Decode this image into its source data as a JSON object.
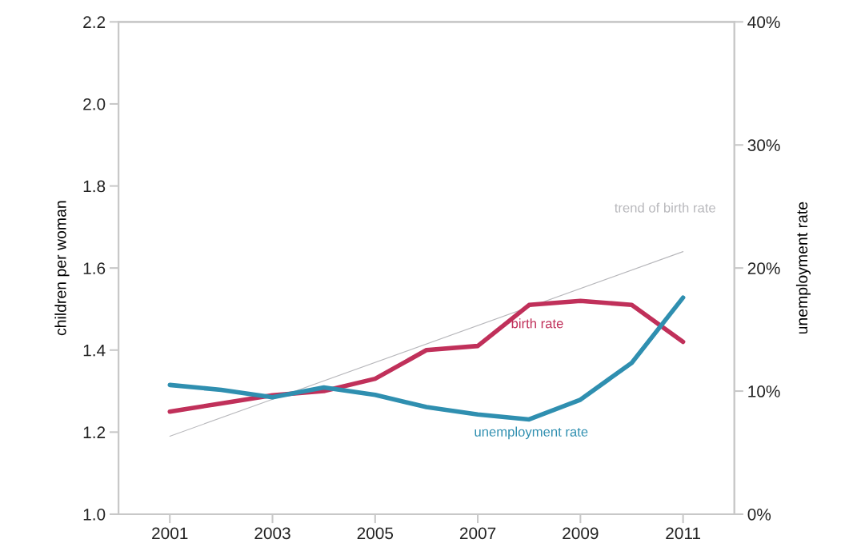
{
  "chart_data": {
    "type": "line",
    "ylabel": "children per woman",
    "y2label": "unemployment rate",
    "x": [
      2001,
      2002,
      2003,
      2004,
      2005,
      2006,
      2007,
      2008,
      2009,
      2010,
      2011
    ],
    "series": [
      {
        "name": "trend of birth rate",
        "color": "#b8b8bc",
        "x": [
          2001,
          2011
        ],
        "values": [
          1.19,
          1.64
        ]
      },
      {
        "name": "birth rate",
        "color": "#c0305a",
        "values": [
          1.25,
          1.27,
          1.29,
          1.3,
          1.33,
          1.4,
          1.41,
          1.51,
          1.52,
          1.51,
          1.42
        ]
      },
      {
        "name": "unemployment rate",
        "color": "#2f8fb0",
        "axis": "y2",
        "values": [
          10.5,
          10.1,
          9.5,
          10.3,
          9.7,
          8.7,
          8.1,
          7.7,
          9.3,
          12.3,
          17.6
        ]
      }
    ],
    "xlim": [
      2000,
      2012
    ],
    "xticks": [
      2001,
      2003,
      2005,
      2007,
      2009,
      2011
    ],
    "ylim": [
      1.0,
      2.2
    ],
    "yticks": [
      {
        "value": 1.0,
        "label": "1.0"
      },
      {
        "value": 1.2,
        "label": "1.2"
      },
      {
        "value": 1.4,
        "label": "1.4"
      },
      {
        "value": 1.6,
        "label": "1.6"
      },
      {
        "value": 1.8,
        "label": "1.8"
      },
      {
        "value": 2.0,
        "label": "2.0"
      },
      {
        "value": 2.2,
        "label": "2.2"
      }
    ],
    "y2lim": [
      0,
      40
    ],
    "y2ticks": [
      {
        "value": 0,
        "label": "0%"
      },
      {
        "value": 10,
        "label": "10%"
      },
      {
        "value": 20,
        "label": "20%"
      },
      {
        "value": 30,
        "label": "30%"
      },
      {
        "value": 40,
        "label": "40%"
      }
    ],
    "grid": false,
    "legend": false,
    "marker": "none",
    "line_style": "solid"
  }
}
